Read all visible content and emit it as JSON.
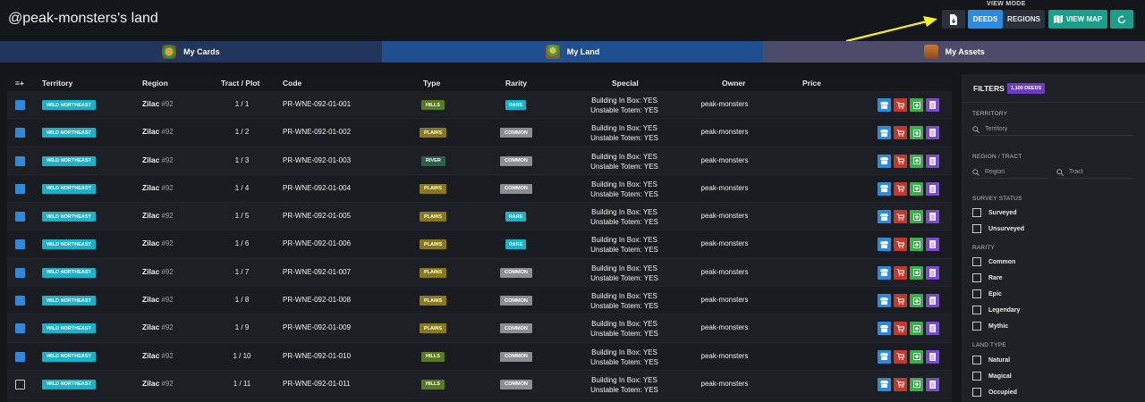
{
  "header": {
    "title": "@peak-monsters's land",
    "view_mode_label": "VIEW MODE",
    "deeds_label": "DEEDS",
    "regions_label": "REGIONS",
    "view_map_label": "VIEW MAP",
    "export_icon": "file-download-icon",
    "refresh_icon": "refresh-icon",
    "map_icon": "map-icon"
  },
  "tabs": [
    {
      "label": "My Cards"
    },
    {
      "label": "My Land"
    },
    {
      "label": "My Assets"
    }
  ],
  "table": {
    "columns": [
      "Territory",
      "Region",
      "Tract / Plot",
      "Code",
      "Type",
      "Rarity",
      "Special",
      "Owner",
      "Price"
    ],
    "select_all_icon": "≡+",
    "rows": [
      {
        "checked": true,
        "territory": "WILD NORTHEAST",
        "region": "Zilac",
        "region_num": "#92",
        "tract": "1 / 1",
        "code": "PR-WNE-092-01-001",
        "type": "HILLS",
        "rarity": "RARE",
        "special1": "Building In Box: YES",
        "special2": "Unstable Totem: YES",
        "owner": "peak-monsters"
      },
      {
        "checked": true,
        "territory": "WILD NORTHEAST",
        "region": "Zilac",
        "region_num": "#92",
        "tract": "1 / 2",
        "code": "PR-WNE-092-01-002",
        "type": "PLAINS",
        "rarity": "COMMON",
        "special1": "Building In Box: YES",
        "special2": "Unstable Totem: YES",
        "owner": "peak-monsters"
      },
      {
        "checked": true,
        "territory": "WILD NORTHEAST",
        "region": "Zilac",
        "region_num": "#92",
        "tract": "1 / 3",
        "code": "PR-WNE-092-01-003",
        "type": "RIVER",
        "rarity": "COMMON",
        "special1": "Building In Box: YES",
        "special2": "Unstable Totem: YES",
        "owner": "peak-monsters"
      },
      {
        "checked": true,
        "territory": "WILD NORTHEAST",
        "region": "Zilac",
        "region_num": "#92",
        "tract": "1 / 4",
        "code": "PR-WNE-092-01-004",
        "type": "PLAINS",
        "rarity": "COMMON",
        "special1": "Building In Box: YES",
        "special2": "Unstable Totem: YES",
        "owner": "peak-monsters"
      },
      {
        "checked": true,
        "territory": "WILD NORTHEAST",
        "region": "Zilac",
        "region_num": "#92",
        "tract": "1 / 5",
        "code": "PR-WNE-092-01-005",
        "type": "PLAINS",
        "rarity": "RARE",
        "special1": "Building In Box: YES",
        "special2": "Unstable Totem: YES",
        "owner": "peak-monsters"
      },
      {
        "checked": true,
        "territory": "WILD NORTHEAST",
        "region": "Zilac",
        "region_num": "#92",
        "tract": "1 / 6",
        "code": "PR-WNE-092-01-006",
        "type": "PLAINS",
        "rarity": "RARE",
        "special1": "Building In Box: YES",
        "special2": "Unstable Totem: YES",
        "owner": "peak-monsters"
      },
      {
        "checked": true,
        "territory": "WILD NORTHEAST",
        "region": "Zilac",
        "region_num": "#92",
        "tract": "1 / 7",
        "code": "PR-WNE-092-01-007",
        "type": "PLAINS",
        "rarity": "COMMON",
        "special1": "Building In Box: YES",
        "special2": "Unstable Totem: YES",
        "owner": "peak-monsters"
      },
      {
        "checked": true,
        "territory": "WILD NORTHEAST",
        "region": "Zilac",
        "region_num": "#92",
        "tract": "1 / 8",
        "code": "PR-WNE-092-01-008",
        "type": "PLAINS",
        "rarity": "COMMON",
        "special1": "Building In Box: YES",
        "special2": "Unstable Totem: YES",
        "owner": "peak-monsters"
      },
      {
        "checked": true,
        "territory": "WILD NORTHEAST",
        "region": "Zilac",
        "region_num": "#92",
        "tract": "1 / 9",
        "code": "PR-WNE-092-01-009",
        "type": "PLAINS",
        "rarity": "COMMON",
        "special1": "Building In Box: YES",
        "special2": "Unstable Totem: YES",
        "owner": "peak-monsters"
      },
      {
        "checked": true,
        "territory": "WILD NORTHEAST",
        "region": "Zilac",
        "region_num": "#92",
        "tract": "1 / 10",
        "code": "PR-WNE-092-01-010",
        "type": "HILLS",
        "rarity": "COMMON",
        "special1": "Building In Box: YES",
        "special2": "Unstable Totem: YES",
        "owner": "peak-monsters"
      },
      {
        "checked": false,
        "territory": "WILD NORTHEAST",
        "region": "Zilac",
        "region_num": "#92",
        "tract": "1 / 11",
        "code": "PR-WNE-092-01-011",
        "type": "HILLS",
        "rarity": "COMMON",
        "special1": "Building In Box: YES",
        "special2": "Unstable Totem: YES",
        "owner": "peak-monsters"
      }
    ],
    "action_icons": [
      "store-icon",
      "cart-icon",
      "add-square-icon",
      "document-icon"
    ]
  },
  "filters": {
    "title": "FILTERS",
    "deeds_count": "1,100 DEEDS",
    "territory_label": "TERRITORY",
    "territory_placeholder": "Territory",
    "region_tract_label": "REGION / TRACT",
    "region_placeholder": "Region",
    "tract_placeholder": "Tract",
    "survey_label": "SURVEY STATUS",
    "survey_options": [
      "Surveyed",
      "Unsurveyed"
    ],
    "rarity_label": "RARITY",
    "rarity_options": [
      "Common",
      "Rare",
      "Epic",
      "Legendary",
      "Mythic"
    ],
    "land_type_label": "LAND TYPE",
    "land_type_options": [
      "Natural",
      "Magical",
      "Occupied"
    ]
  },
  "colors": {
    "accent_blue": "#2b8be0",
    "teal": "#1aa08a",
    "territory_badge": "#1ab2c9",
    "deeds_badge": "#6b3bc2",
    "arrow": "#f5f21f"
  }
}
